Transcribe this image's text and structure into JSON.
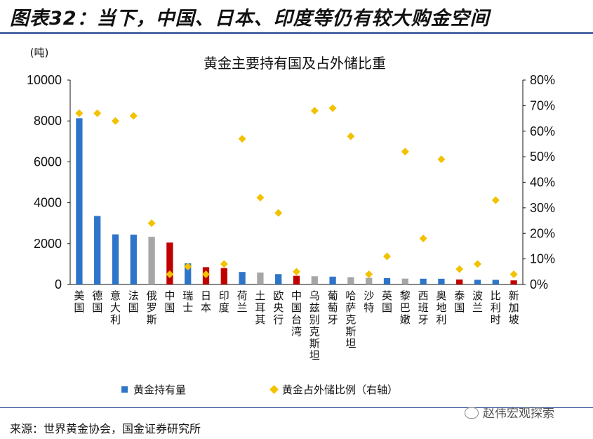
{
  "figure_title": "图表32：当下，中国、日本、印度等仍有较大购金空间",
  "source": "来源：世界黄金协会，国金证券研究所",
  "watermark": "赵伟宏观探索",
  "colors": {
    "bar_default": "#2e75c9",
    "bar_gray": "#a6a6a6",
    "bar_red": "#c00000",
    "dot": "#f2c200",
    "rule": "#1f3f8f"
  },
  "chart_data": {
    "type": "bar",
    "title": "黄金主要持有国及占外储比重",
    "y_unit_label": "(吨)",
    "categories": [
      "美国",
      "德国",
      "意大利",
      "法国",
      "俄罗斯",
      "中国",
      "瑞士",
      "日本",
      "印度",
      "荷兰",
      "土耳其",
      "欧央行",
      "中国台湾",
      "乌兹别克斯坦",
      "葡萄牙",
      "哈萨克斯坦",
      "沙特",
      "英国",
      "黎巴嫩",
      "西班牙",
      "奥地利",
      "泰国",
      "波兰",
      "比利时",
      "新加坡"
    ],
    "bar_color_groups": [
      "blue",
      "blue",
      "blue",
      "blue",
      "gray",
      "red",
      "blue",
      "red",
      "red",
      "blue",
      "gray",
      "blue",
      "red",
      "gray",
      "blue",
      "gray",
      "gray",
      "blue",
      "gray",
      "blue",
      "blue",
      "red",
      "blue",
      "blue",
      "red"
    ],
    "series": [
      {
        "name": "黄金持有量",
        "axis": "left",
        "type": "bar",
        "values": [
          8133,
          3352,
          2452,
          2437,
          2333,
          2050,
          1040,
          846,
          801,
          612,
          584,
          507,
          424,
          402,
          383,
          356,
          323,
          310,
          287,
          282,
          280,
          244,
          229,
          227,
          200
        ]
      },
      {
        "name": "黄金占外储比例（右轴）",
        "axis": "right",
        "type": "scatter",
        "values": [
          67,
          67,
          64,
          66,
          24,
          4,
          7,
          4,
          8,
          57,
          34,
          28,
          5,
          68,
          69,
          58,
          4,
          11,
          52,
          18,
          49,
          6,
          8,
          33,
          4
        ]
      }
    ],
    "y_left": {
      "min": 0,
      "max": 10000,
      "ticks": [
        "0",
        "2000",
        "4000",
        "6000",
        "8000",
        "10000"
      ]
    },
    "y_right": {
      "min": 0,
      "max": 80,
      "ticks": [
        "0%",
        "10%",
        "20%",
        "30%",
        "40%",
        "50%",
        "60%",
        "70%",
        "80%"
      ]
    },
    "legend": {
      "placement": "bottom"
    }
  }
}
